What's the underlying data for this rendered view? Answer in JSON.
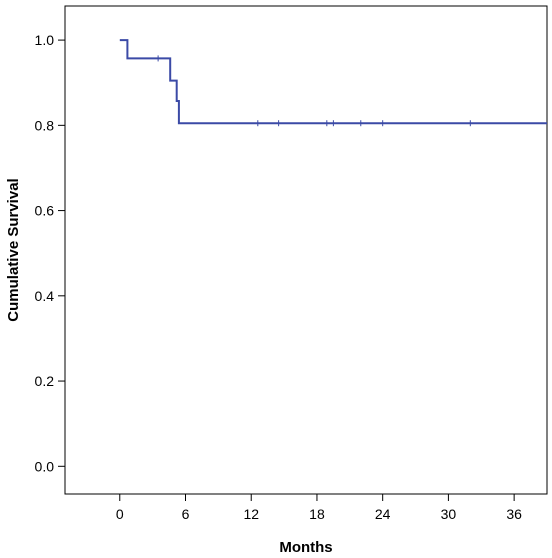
{
  "chart_data": {
    "type": "line",
    "title": "",
    "xlabel": "Months",
    "ylabel": "Cumulative Survival",
    "xlim": [
      -5,
      39
    ],
    "ylim": [
      -0.065,
      1.08
    ],
    "xticks": [
      0,
      6,
      12,
      18,
      24,
      30,
      36
    ],
    "xtick_labels": [
      "0",
      "6",
      "12",
      "18",
      "24",
      "30",
      "36"
    ],
    "yticks": [
      0.0,
      0.2,
      0.4,
      0.6,
      0.8,
      1.0
    ],
    "ytick_labels": [
      "0.0",
      "0.2",
      "0.4",
      "0.6",
      "0.8",
      "1.0"
    ],
    "grid": false,
    "series": [
      {
        "color": "#3b4aa6",
        "step_x": [
          0,
          0.7,
          0.7,
          4.6,
          4.6,
          5.2,
          5.2,
          5.4,
          5.4,
          39
        ],
        "step_y": [
          1.0,
          1.0,
          0.957,
          0.957,
          0.905,
          0.905,
          0.857,
          0.857,
          0.805,
          0.805
        ],
        "censored": [
          {
            "x": 3.5,
            "y": 0.957
          },
          {
            "x": 12.6,
            "y": 0.805
          },
          {
            "x": 14.5,
            "y": 0.805
          },
          {
            "x": 18.9,
            "y": 0.805
          },
          {
            "x": 19.5,
            "y": 0.805
          },
          {
            "x": 22.0,
            "y": 0.805
          },
          {
            "x": 24.0,
            "y": 0.805
          },
          {
            "x": 32.0,
            "y": 0.805
          }
        ]
      }
    ]
  }
}
